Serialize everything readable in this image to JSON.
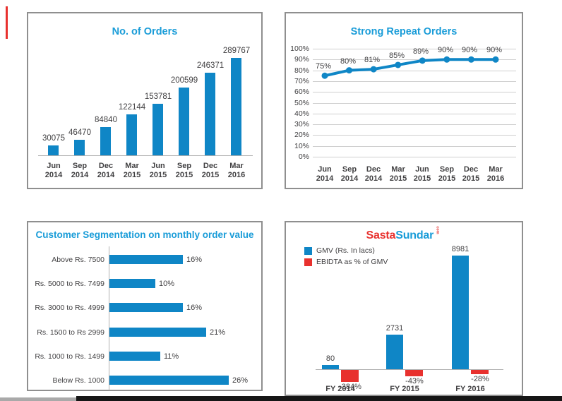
{
  "accents": {
    "left_mark_color": "#e8312e",
    "bottom_gray_color": "#a9a9a9",
    "bottom_black_color": "#161616"
  },
  "colors": {
    "bar_blue": "#0f86c6",
    "red": "#e8312e",
    "title_blue": "#199cd8",
    "text": "#414042",
    "grid": "#cfcfcf",
    "axis": "#b0b0b0"
  },
  "chart_data": [
    {
      "type": "bar",
      "title": "No. of Orders",
      "categories": [
        "Jun 2014",
        "Sep 2014",
        "Dec 2014",
        "Mar 2015",
        "Jun 2015",
        "Sep 2015",
        "Dec 2015",
        "Mar 2016"
      ],
      "values": [
        30075,
        46470,
        84840,
        122144,
        153781,
        200599,
        246371,
        289767
      ],
      "ylim": [
        0,
        300000
      ],
      "grid": false,
      "legend": "none",
      "bar_color": "#0f86c6"
    },
    {
      "type": "line",
      "title": "Strong Repeat Orders",
      "categories": [
        "Jun 2014",
        "Sep 2014",
        "Dec 2014",
        "Mar 2015",
        "Jun 2015",
        "Sep 2015",
        "Dec 2015",
        "Mar 2016"
      ],
      "values": [
        75,
        80,
        81,
        85,
        89,
        90,
        90,
        90
      ],
      "point_labels": [
        "75%",
        "80%",
        "81%",
        "85%",
        "89%",
        "90%",
        "90%",
        "90%"
      ],
      "ytick_labels": [
        "100%",
        "90%",
        "80%",
        "70%",
        "60%",
        "50%",
        "40%",
        "30%",
        "20%",
        "10%",
        "0%"
      ],
      "ylim": [
        0,
        100
      ],
      "grid": true,
      "legend": "none",
      "line_color": "#0f86c6"
    },
    {
      "type": "horizontal-bar",
      "title": "Customer Segmentation on monthly order value",
      "categories": [
        "Above Rs. 7500",
        "Rs. 5000 to Rs. 7499",
        "Rs. 3000 to Rs. 4999",
        "Rs. 1500 to Rs 2999",
        "Rs. 1000 to Rs. 1499",
        "Below Rs. 1000"
      ],
      "values": [
        16,
        10,
        16,
        21,
        11,
        26
      ],
      "value_labels": [
        "16%",
        "10%",
        "16%",
        "21%",
        "11%",
        "26%"
      ],
      "xlim": [
        0,
        30
      ],
      "grid": false,
      "legend": "none",
      "bar_color": "#0f86c6"
    },
    {
      "type": "grouped-bar",
      "logo": {
        "part1": "Sasta",
        "part2": "Sundar",
        "suffix": "com",
        "part1_color": "#e8312e",
        "part2_color": "#199cd8"
      },
      "categories": [
        "FY 2014",
        "FY 2015",
        "FY 2016"
      ],
      "series": [
        {
          "name": "GMV (Rs. In lacs)",
          "color": "#0f86c6",
          "values": [
            80,
            2731,
            8981
          ],
          "labels": [
            "80",
            "2731",
            "8981"
          ]
        },
        {
          "name": "EBIDTA as % of GMV",
          "color": "#e8312e",
          "values": [
            -384,
            -43,
            -28
          ],
          "labels": [
            "-384%",
            "-43%",
            "-28%"
          ]
        }
      ],
      "legend": "top-left"
    }
  ]
}
